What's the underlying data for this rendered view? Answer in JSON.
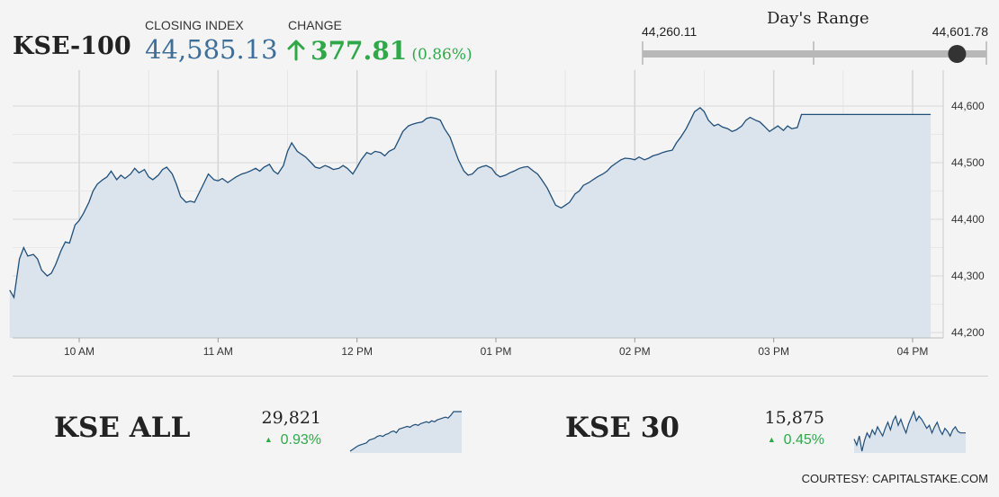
{
  "header": {
    "index_name": "KSE-100",
    "closing_label": "CLOSING INDEX",
    "closing_value": "44,585.13",
    "change_label": "CHANGE",
    "change_value": "377.81",
    "change_percent": "(0.86%)",
    "change_icon": "up-arrow-icon"
  },
  "days_range": {
    "title": "Day's Range",
    "low_label": "44,260.11",
    "high_label": "44,601.78",
    "low": 44260.11,
    "high": 44601.78,
    "current": 44585.13
  },
  "chart_data": {
    "type": "area",
    "x_ticks": [
      "10 AM",
      "11 AM",
      "12 PM",
      "01 PM",
      "02 PM",
      "03 PM",
      "04 PM"
    ],
    "y_ticks": [
      "44,200",
      "44,300",
      "44,400",
      "44,500",
      "44,600"
    ],
    "ylim": [
      44190,
      44615
    ],
    "xlim": [
      9.5,
      16.2
    ],
    "grid": true,
    "series": [
      {
        "color": "#1f4e79",
        "fill": "#dbe4ec",
        "points": [
          [
            9.5,
            44275
          ],
          [
            9.53,
            44262
          ],
          [
            9.57,
            44330
          ],
          [
            9.6,
            44350
          ],
          [
            9.63,
            44335
          ],
          [
            9.67,
            44338
          ],
          [
            9.7,
            44330
          ],
          [
            9.73,
            44310
          ],
          [
            9.77,
            44300
          ],
          [
            9.8,
            44305
          ],
          [
            9.83,
            44320
          ],
          [
            9.87,
            44345
          ],
          [
            9.9,
            44360
          ],
          [
            9.93,
            44358
          ],
          [
            9.97,
            44390
          ],
          [
            10.0,
            44398
          ],
          [
            10.03,
            44410
          ],
          [
            10.07,
            44430
          ],
          [
            10.1,
            44450
          ],
          [
            10.13,
            44462
          ],
          [
            10.17,
            44470
          ],
          [
            10.2,
            44475
          ],
          [
            10.23,
            44485
          ],
          [
            10.27,
            44470
          ],
          [
            10.3,
            44478
          ],
          [
            10.33,
            44472
          ],
          [
            10.37,
            44480
          ],
          [
            10.4,
            44490
          ],
          [
            10.43,
            44482
          ],
          [
            10.47,
            44488
          ],
          [
            10.5,
            44475
          ],
          [
            10.53,
            44470
          ],
          [
            10.57,
            44478
          ],
          [
            10.6,
            44488
          ],
          [
            10.63,
            44492
          ],
          [
            10.67,
            44480
          ],
          [
            10.7,
            44462
          ],
          [
            10.73,
            44440
          ],
          [
            10.77,
            44430
          ],
          [
            10.8,
            44432
          ],
          [
            10.83,
            44430
          ],
          [
            10.87,
            44450
          ],
          [
            10.9,
            44465
          ],
          [
            10.93,
            44480
          ],
          [
            10.97,
            44470
          ],
          [
            11.0,
            44468
          ],
          [
            11.03,
            44472
          ],
          [
            11.07,
            44465
          ],
          [
            11.1,
            44470
          ],
          [
            11.13,
            44475
          ],
          [
            11.17,
            44480
          ],
          [
            11.2,
            44482
          ],
          [
            11.23,
            44485
          ],
          [
            11.27,
            44490
          ],
          [
            11.3,
            44485
          ],
          [
            11.33,
            44492
          ],
          [
            11.37,
            44497
          ],
          [
            11.4,
            44485
          ],
          [
            11.43,
            44480
          ],
          [
            11.47,
            44495
          ],
          [
            11.5,
            44520
          ],
          [
            11.53,
            44535
          ],
          [
            11.57,
            44520
          ],
          [
            11.6,
            44515
          ],
          [
            11.63,
            44510
          ],
          [
            11.67,
            44500
          ],
          [
            11.7,
            44492
          ],
          [
            11.73,
            44490
          ],
          [
            11.77,
            44495
          ],
          [
            11.8,
            44492
          ],
          [
            11.83,
            44488
          ],
          [
            11.87,
            44490
          ],
          [
            11.9,
            44495
          ],
          [
            11.93,
            44490
          ],
          [
            11.97,
            44480
          ],
          [
            12.0,
            44492
          ],
          [
            12.03,
            44505
          ],
          [
            12.07,
            44518
          ],
          [
            12.1,
            44515
          ],
          [
            12.13,
            44520
          ],
          [
            12.17,
            44518
          ],
          [
            12.2,
            44512
          ],
          [
            12.23,
            44520
          ],
          [
            12.27,
            44525
          ],
          [
            12.3,
            44540
          ],
          [
            12.33,
            44555
          ],
          [
            12.37,
            44565
          ],
          [
            12.4,
            44568
          ],
          [
            12.43,
            44570
          ],
          [
            12.47,
            44572
          ],
          [
            12.5,
            44578
          ],
          [
            12.53,
            44580
          ],
          [
            12.57,
            44578
          ],
          [
            12.6,
            44575
          ],
          [
            12.63,
            44560
          ],
          [
            12.67,
            44545
          ],
          [
            12.7,
            44525
          ],
          [
            12.73,
            44505
          ],
          [
            12.77,
            44485
          ],
          [
            12.8,
            44478
          ],
          [
            12.83,
            44480
          ],
          [
            12.87,
            44490
          ],
          [
            12.9,
            44493
          ],
          [
            12.93,
            44495
          ],
          [
            12.97,
            44490
          ],
          [
            13.0,
            44480
          ],
          [
            13.03,
            44475
          ],
          [
            13.07,
            44478
          ],
          [
            13.1,
            44482
          ],
          [
            13.13,
            44485
          ],
          [
            13.17,
            44490
          ],
          [
            13.2,
            44492
          ],
          [
            13.23,
            44493
          ],
          [
            13.27,
            44485
          ],
          [
            13.3,
            44480
          ],
          [
            13.33,
            44470
          ],
          [
            13.37,
            44455
          ],
          [
            13.4,
            44440
          ],
          [
            13.43,
            44425
          ],
          [
            13.47,
            44420
          ],
          [
            13.5,
            44425
          ],
          [
            13.53,
            44430
          ],
          [
            13.57,
            44445
          ],
          [
            13.6,
            44450
          ],
          [
            13.63,
            44460
          ],
          [
            13.67,
            44465
          ],
          [
            13.7,
            44470
          ],
          [
            13.73,
            44475
          ],
          [
            13.77,
            44480
          ],
          [
            13.8,
            44485
          ],
          [
            13.83,
            44493
          ],
          [
            13.87,
            44500
          ],
          [
            13.9,
            44505
          ],
          [
            13.93,
            44508
          ],
          [
            13.97,
            44507
          ],
          [
            14.0,
            44505
          ],
          [
            14.03,
            44510
          ],
          [
            14.07,
            44505
          ],
          [
            14.1,
            44508
          ],
          [
            14.13,
            44512
          ],
          [
            14.17,
            44515
          ],
          [
            14.2,
            44518
          ],
          [
            14.23,
            44520
          ],
          [
            14.27,
            44522
          ],
          [
            14.3,
            44535
          ],
          [
            14.33,
            44545
          ],
          [
            14.37,
            44560
          ],
          [
            14.4,
            44575
          ],
          [
            14.43,
            44590
          ],
          [
            14.47,
            44597
          ],
          [
            14.5,
            44590
          ],
          [
            14.53,
            44575
          ],
          [
            14.57,
            44565
          ],
          [
            14.6,
            44568
          ],
          [
            14.63,
            44563
          ],
          [
            14.67,
            44560
          ],
          [
            14.7,
            44555
          ],
          [
            14.73,
            44558
          ],
          [
            14.77,
            44565
          ],
          [
            14.8,
            44575
          ],
          [
            14.83,
            44580
          ],
          [
            14.87,
            44575
          ],
          [
            14.9,
            44572
          ],
          [
            14.93,
            44565
          ],
          [
            14.97,
            44555
          ],
          [
            15.0,
            44560
          ],
          [
            15.03,
            44565
          ],
          [
            15.07,
            44557
          ],
          [
            15.1,
            44565
          ],
          [
            15.13,
            44560
          ],
          [
            15.17,
            44562
          ],
          [
            15.2,
            44585
          ],
          [
            15.3,
            44585
          ],
          [
            15.5,
            44585
          ],
          [
            15.7,
            44585
          ],
          [
            15.9,
            44585
          ],
          [
            16.0,
            44585
          ],
          [
            16.1,
            44585
          ],
          [
            16.13,
            44585
          ]
        ]
      }
    ]
  },
  "sub_indices": [
    {
      "name": "KSE ALL",
      "value": "29,821",
      "change": "0.93%",
      "arrow_icon": "up-triangle-icon",
      "sparkline": [
        1,
        3,
        5,
        7,
        8,
        9,
        10,
        13,
        14,
        15,
        17,
        18,
        17,
        19,
        20,
        22,
        23,
        21,
        25,
        26,
        27,
        28,
        27,
        29,
        30,
        29,
        31,
        32,
        33,
        32,
        34,
        33,
        35,
        36,
        37,
        38,
        37,
        40,
        44,
        44,
        44,
        44
      ]
    },
    {
      "name": "KSE 30",
      "value": "15,875",
      "change": "0.45%",
      "arrow_icon": "up-triangle-icon",
      "sparkline": [
        18,
        14,
        20,
        10,
        17,
        22,
        19,
        24,
        21,
        26,
        23,
        20,
        25,
        29,
        24,
        30,
        33,
        27,
        31,
        26,
        22,
        28,
        32,
        36,
        30,
        33,
        31,
        28,
        25,
        27,
        22,
        26,
        29,
        24,
        21,
        25,
        23,
        20,
        24,
        26,
        23,
        22,
        22,
        22
      ]
    }
  ],
  "footer": {
    "courtesy": "COURTESY: CAPITALSTAKE.COM"
  }
}
